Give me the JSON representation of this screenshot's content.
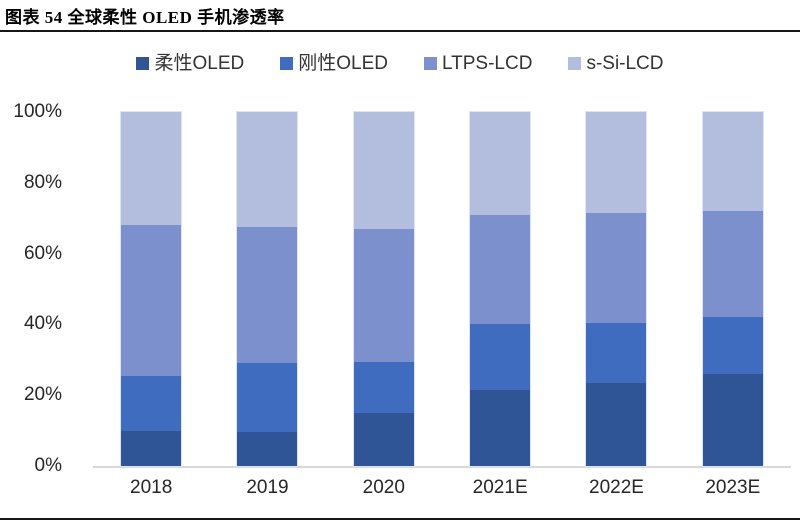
{
  "header": {
    "title": "图表 54 全球柔性 OLED 手机渗透率"
  },
  "chart_data": {
    "type": "bar",
    "stacked": true,
    "title": "全球柔性 OLED 手机渗透率",
    "categories": [
      "2018",
      "2019",
      "2020",
      "2021E",
      "2022E",
      "2023E"
    ],
    "series": [
      {
        "name": "柔性OLED",
        "color": "#2F5597",
        "values": [
          10,
          9.5,
          15,
          21.5,
          23.5,
          26
        ]
      },
      {
        "name": "刚性OLED",
        "color": "#3F6CBF",
        "values": [
          15.5,
          19.5,
          14.5,
          18.5,
          17,
          16
        ]
      },
      {
        "name": "LTPS-LCD",
        "color": "#7C90CE",
        "values": [
          42.5,
          38.5,
          37.5,
          31,
          31,
          30
        ]
      },
      {
        "name": "s-Si-LCD",
        "color": "#B3BDDE",
        "values": [
          32,
          32.5,
          33,
          29,
          28.5,
          28
        ]
      }
    ],
    "xlabel": "",
    "ylabel": "",
    "ylim": [
      0,
      100
    ],
    "ytick_step": 20,
    "ytick_labels": [
      "0%",
      "20%",
      "40%",
      "60%",
      "80%",
      "100%"
    ],
    "legend_position": "top",
    "grid": false,
    "axis_line_color": "#d9d9d9",
    "rule_color": "#161616"
  }
}
